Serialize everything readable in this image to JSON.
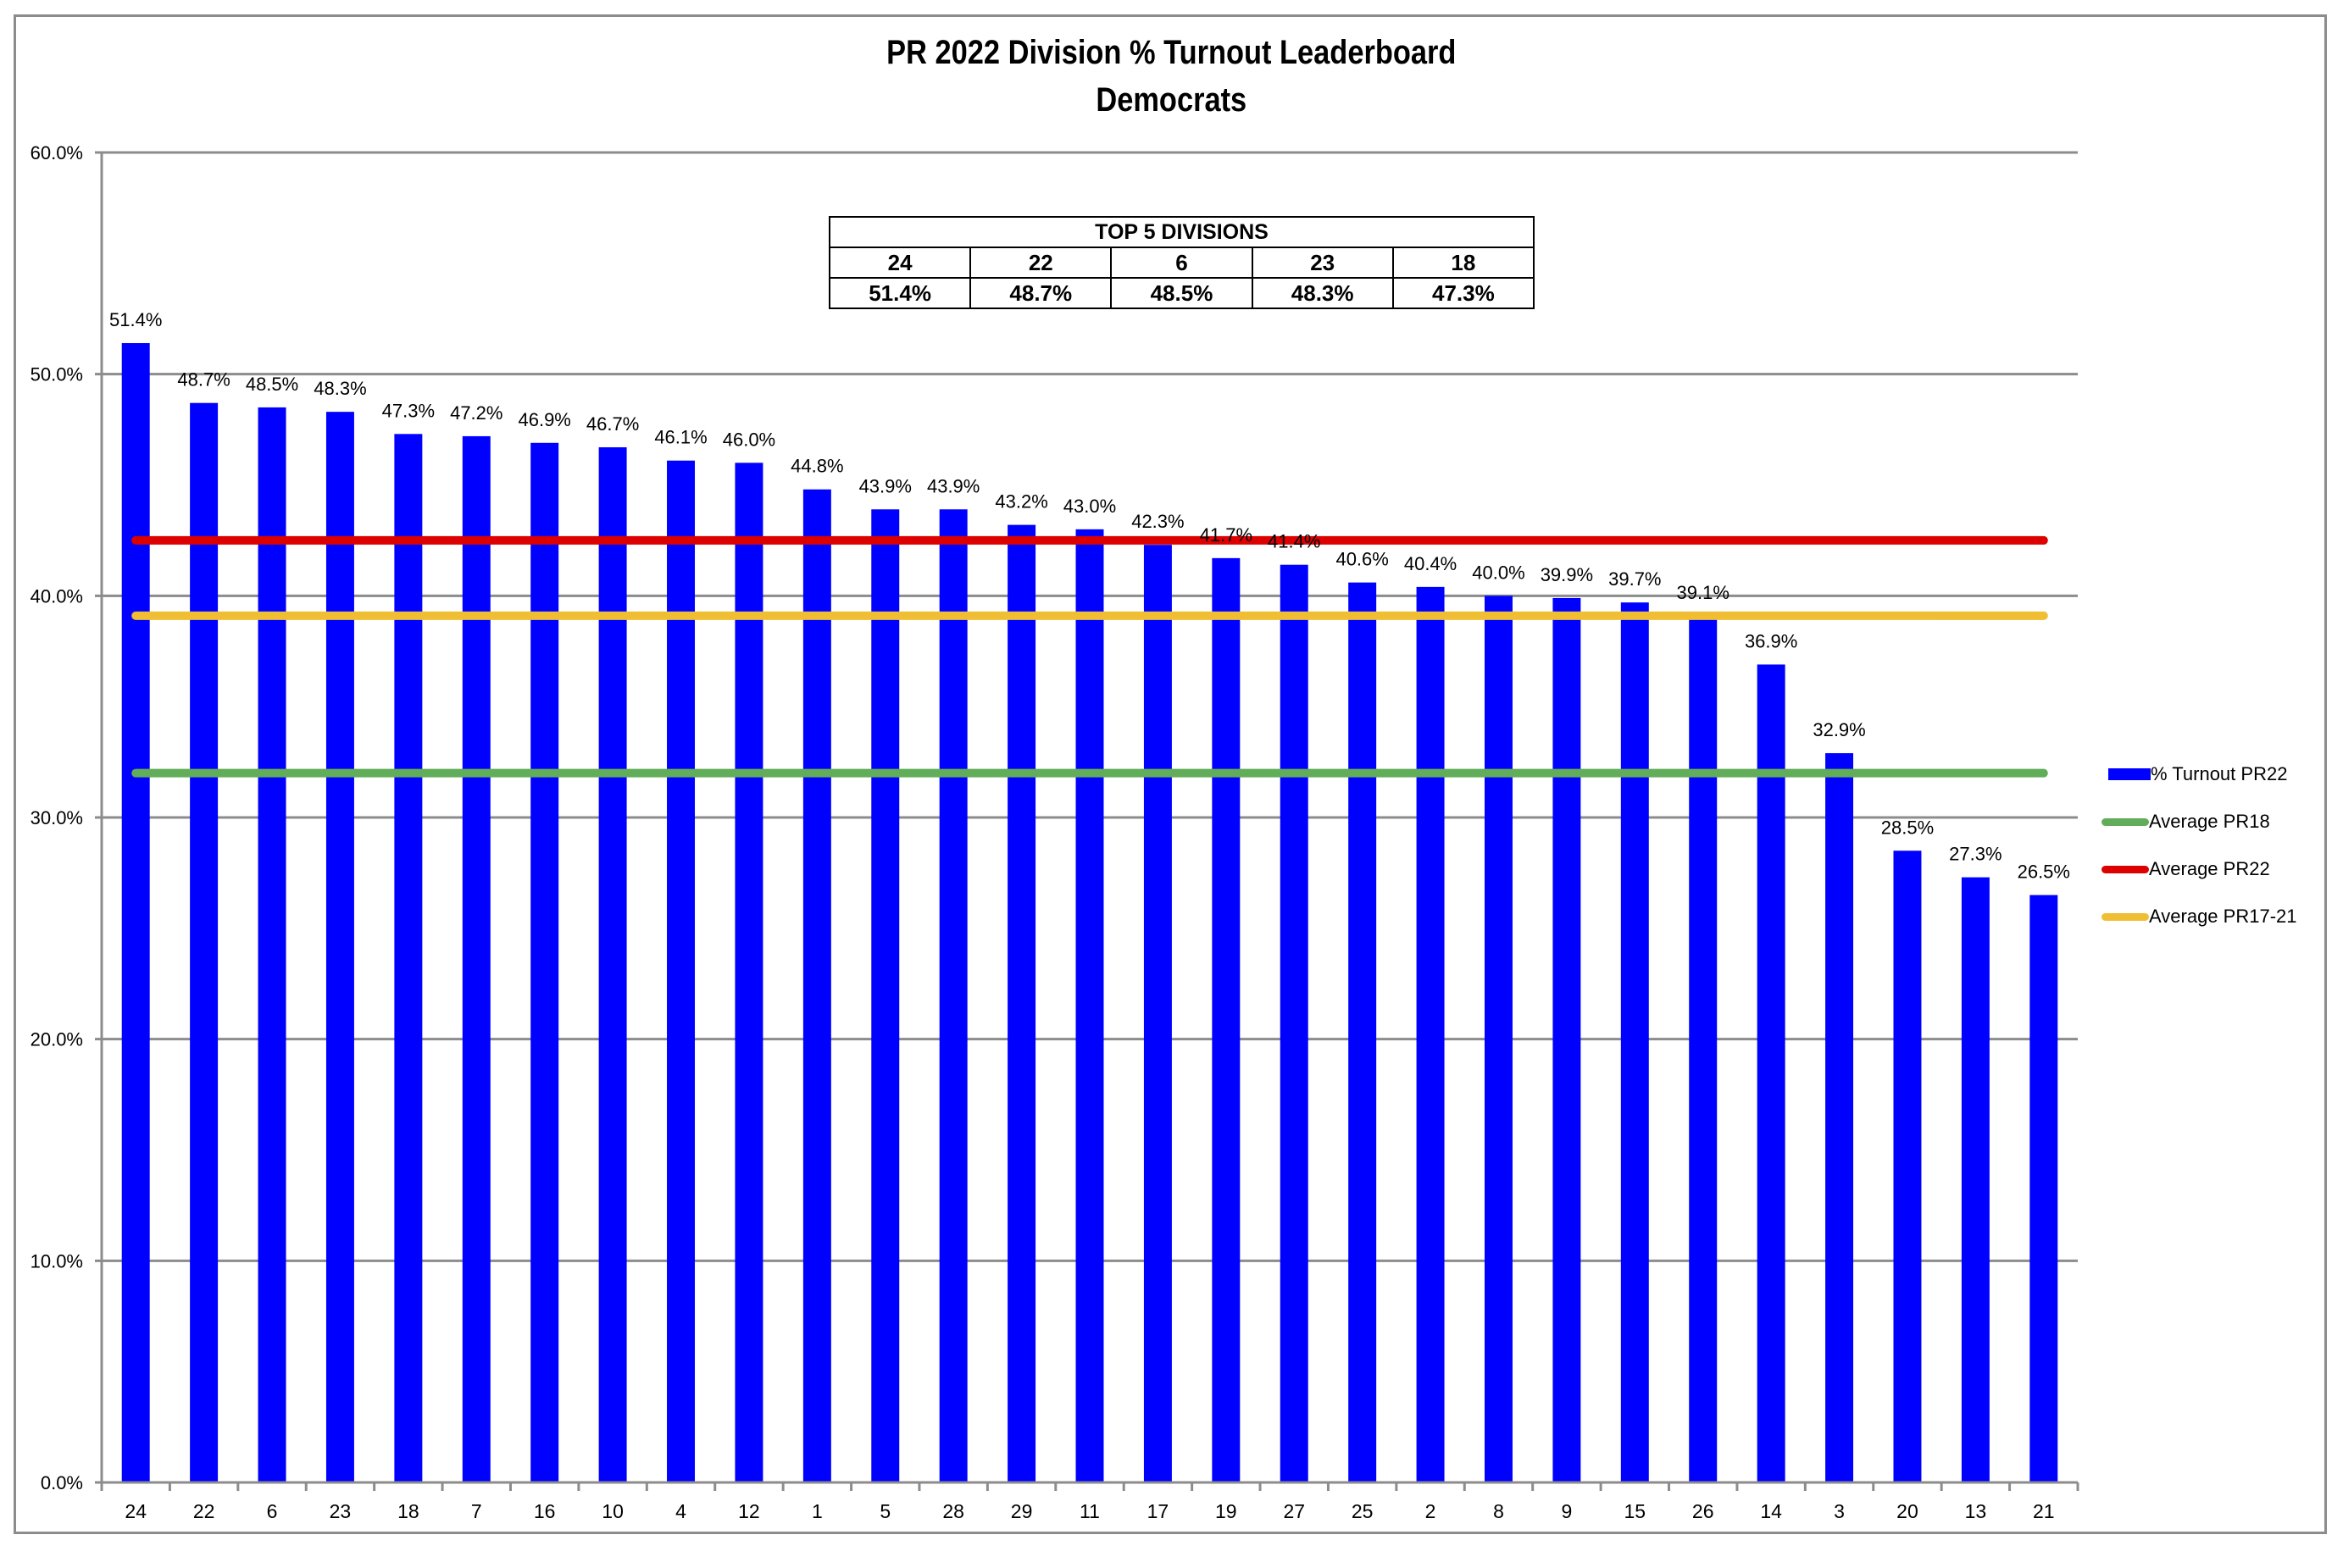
{
  "chart_data": {
    "type": "bar",
    "title": "PR 2022 Division % Turnout Leaderboard",
    "subtitle": "Democrats",
    "xlabel": "",
    "ylabel": "",
    "ylim": [
      0,
      60
    ],
    "yticks": [
      "0.0%",
      "10.0%",
      "20.0%",
      "30.0%",
      "40.0%",
      "50.0%",
      "60.0%"
    ],
    "grid": true,
    "legend_position": "right",
    "categories": [
      "24",
      "22",
      "6",
      "23",
      "18",
      "7",
      "16",
      "10",
      "4",
      "12",
      "1",
      "5",
      "28",
      "29",
      "11",
      "17",
      "19",
      "27",
      "25",
      "2",
      "8",
      "9",
      "15",
      "26",
      "14",
      "3",
      "20",
      "13",
      "21"
    ],
    "series": [
      {
        "name": "% Turnout PR22",
        "type": "bar",
        "color": "#0000ff",
        "values": [
          51.4,
          48.7,
          48.5,
          48.3,
          47.3,
          47.2,
          46.9,
          46.7,
          46.1,
          46.0,
          44.8,
          43.9,
          43.9,
          43.2,
          43.0,
          42.3,
          41.7,
          41.4,
          40.6,
          40.4,
          40.0,
          39.9,
          39.7,
          39.1,
          36.9,
          32.9,
          28.5,
          27.3,
          26.5
        ],
        "labels": [
          "51.4%",
          "48.7%",
          "48.5%",
          "48.3%",
          "47.3%",
          "47.2%",
          "46.9%",
          "46.7%",
          "46.1%",
          "46.0%",
          "44.8%",
          "43.9%",
          "43.9%",
          "43.2%",
          "43.0%",
          "42.3%",
          "41.7%",
          "41.4%",
          "40.6%",
          "40.4%",
          "40.0%",
          "39.9%",
          "39.7%",
          "39.1%",
          "36.9%",
          "32.9%",
          "28.5%",
          "27.3%",
          "26.5%"
        ]
      },
      {
        "name": "Average PR18",
        "type": "line",
        "color": "#62ad59",
        "value": 32.0
      },
      {
        "name": "Average PR22",
        "type": "line",
        "color": "#dc0000",
        "value": 42.5
      },
      {
        "name": "Average PR17-21",
        "type": "line",
        "color": "#f0be32",
        "value": 39.1
      }
    ],
    "annotations": {
      "table_title": "TOP 5 DIVISIONS",
      "divisions": [
        "24",
        "22",
        "6",
        "23",
        "18"
      ],
      "percents": [
        "51.4%",
        "48.7%",
        "48.5%",
        "48.3%",
        "47.3%"
      ]
    }
  },
  "legend": [
    {
      "label": "% Turnout PR22",
      "color": "#0000ff",
      "kind": "bar"
    },
    {
      "label": "Average PR18",
      "color": "#62ad59",
      "kind": "line"
    },
    {
      "label": "Average PR22",
      "color": "#dc0000",
      "kind": "line"
    },
    {
      "label": "Average PR17-21",
      "color": "#f0be32",
      "kind": "line"
    }
  ]
}
